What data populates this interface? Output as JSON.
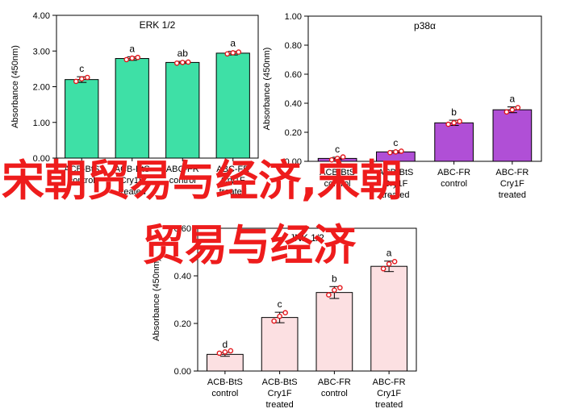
{
  "overlay": {
    "line1": "宋朝贸易与经济,宋朝",
    "line2": "贸易与经济",
    "color": "#ee1c1c"
  },
  "chart_data": [
    {
      "id": "erk",
      "type": "bar",
      "title": "ERK 1/2",
      "ylabel": "Absorbance (450nm)",
      "ylim": [
        0,
        4
      ],
      "yticks": [
        "0.00",
        "1.00",
        "2.00",
        "3.00",
        "4.00"
      ],
      "categories": [
        [
          "ACB-BtS",
          "control"
        ],
        [
          "ACB-BtS",
          "Cry1F",
          "treated"
        ],
        [
          "ABC-FR",
          "control"
        ],
        [
          "ABC-FR",
          "Cry1F",
          "treated"
        ]
      ],
      "values": [
        2.2,
        2.79,
        2.68,
        2.94
      ],
      "errors": [
        0.08,
        0.05,
        0.03,
        0.05
      ],
      "points": [
        [
          2.15,
          2.22,
          2.26
        ],
        [
          2.76,
          2.8,
          2.82
        ],
        [
          2.66,
          2.68,
          2.69
        ],
        [
          2.92,
          2.95,
          2.97
        ]
      ],
      "letters": [
        "c",
        "a",
        "ab",
        "a"
      ],
      "bar_color": "#3ee0a6",
      "grid": false
    },
    {
      "id": "p38",
      "type": "bar",
      "title": "p38α",
      "ylabel": "Absorbance (450nm)",
      "ylim": [
        0,
        1
      ],
      "yticks": [
        "0.00",
        "0.20",
        "0.40",
        "0.60",
        "0.80",
        "1.00"
      ],
      "categories": [
        [
          "ACB-BtS",
          "control"
        ],
        [
          "ACB-BtS",
          "Cry1F",
          "treated"
        ],
        [
          "ABC-FR",
          "control"
        ],
        [
          "ABC-FR",
          "Cry1F",
          "treated"
        ]
      ],
      "values": [
        0.02,
        0.065,
        0.265,
        0.355
      ],
      "errors": [
        0.008,
        0.008,
        0.018,
        0.02
      ],
      "points": [
        [
          0.01,
          0.02,
          0.03
        ],
        [
          0.06,
          0.065,
          0.07
        ],
        [
          0.255,
          0.265,
          0.275
        ],
        [
          0.34,
          0.355,
          0.37
        ]
      ],
      "letters": [
        "c",
        "c",
        "b",
        "a"
      ],
      "bar_color": "#b04fd6",
      "grid": false
    },
    {
      "id": "jnk",
      "type": "bar",
      "title": "JNK 1/2",
      "ylabel": "Absorbance (450nm)",
      "ylim": [
        0,
        0.6
      ],
      "yticks": [
        "0.00",
        "0.20",
        "0.40",
        "0.60"
      ],
      "categories": [
        [
          "ACB-BtS",
          "control"
        ],
        [
          "ACB-BtS",
          "Cry1F",
          "treated"
        ],
        [
          "ABC-FR",
          "control"
        ],
        [
          "ABC-FR",
          "Cry1F",
          "treated"
        ]
      ],
      "values": [
        0.07,
        0.225,
        0.33,
        0.44
      ],
      "errors": [
        0.008,
        0.022,
        0.025,
        0.022
      ],
      "points": [
        [
          0.075,
          0.08,
          0.085
        ],
        [
          0.21,
          0.23,
          0.245
        ],
        [
          0.32,
          0.34,
          0.35
        ],
        [
          0.43,
          0.45,
          0.46
        ]
      ],
      "letters": [
        "d",
        "c",
        "b",
        "a"
      ],
      "bar_color": "#fce0e2",
      "grid": false
    }
  ]
}
